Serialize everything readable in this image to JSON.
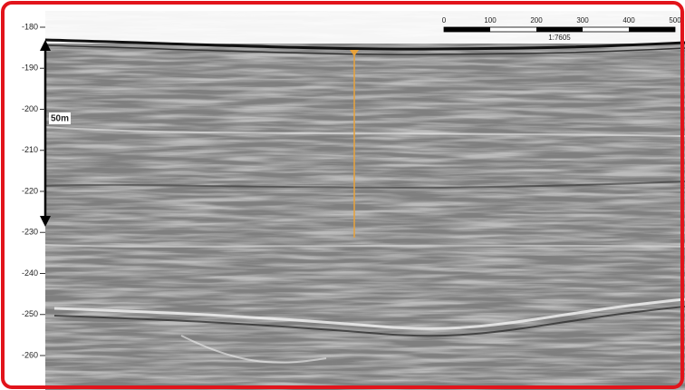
{
  "depth_axis": {
    "ticks": [
      -180,
      -190,
      -200,
      -210,
      -220,
      -230,
      -240,
      -250,
      -260
    ]
  },
  "thickness_marker": "50m",
  "scale_bar": {
    "ticks": [
      0,
      100,
      200,
      300,
      400,
      500
    ],
    "ratio": "1:7605"
  }
}
